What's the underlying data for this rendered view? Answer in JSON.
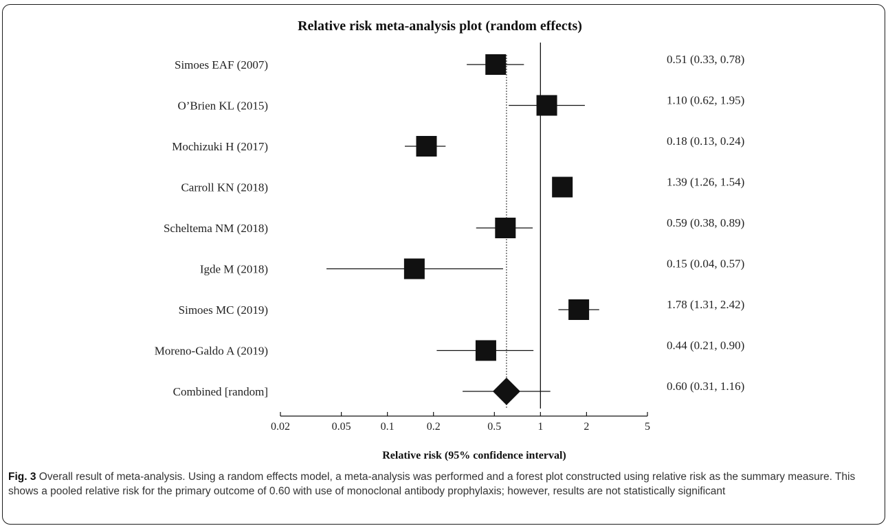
{
  "figure": {
    "number": "Fig. 3",
    "caption": "Overall result of meta-analysis. Using a random effects model, a meta-analysis was performed and a forest plot constructed using relative risk as the summary measure. This shows a pooled relative risk for the primary outcome of 0.60 with use of monoclonal antibody prophylaxis; however, results are not statistically significant"
  },
  "chart_data": {
    "type": "forest",
    "title": "Relative risk meta-analysis plot (random effects)",
    "xlabel": "Relative risk (95% confidence interval)",
    "x_scale": "log",
    "xlim": [
      0.02,
      5
    ],
    "x_ticks": [
      0.02,
      0.05,
      0.1,
      0.2,
      0.5,
      1,
      2,
      5
    ],
    "x_tick_labels": [
      "0.02",
      "0.05",
      "0.1",
      "0.2",
      "0.5",
      "1",
      "2",
      "5"
    ],
    "reference_line": 1,
    "pooled_line": 0.6,
    "studies": [
      {
        "name": "Simoes EAF (2007)",
        "rr": 0.51,
        "lo": 0.33,
        "hi": 0.78,
        "label": "0.51 (0.33, 0.78)"
      },
      {
        "name": "O’Brien KL (2015)",
        "rr": 1.1,
        "lo": 0.62,
        "hi": 1.95,
        "label": "1.10 (0.62, 1.95)"
      },
      {
        "name": "Mochizuki H (2017)",
        "rr": 0.18,
        "lo": 0.13,
        "hi": 0.24,
        "label": "0.18 (0.13, 0.24)"
      },
      {
        "name": "Carroll KN (2018)",
        "rr": 1.39,
        "lo": 1.26,
        "hi": 1.54,
        "label": "1.39 (1.26, 1.54)"
      },
      {
        "name": "Scheltema NM  (2018)",
        "rr": 0.59,
        "lo": 0.38,
        "hi": 0.89,
        "label": "0.59 (0.38, 0.89)"
      },
      {
        "name": "Igde M (2018)",
        "rr": 0.15,
        "lo": 0.04,
        "hi": 0.57,
        "label": "0.15 (0.04, 0.57)"
      },
      {
        "name": "Simoes MC (2019)",
        "rr": 1.78,
        "lo": 1.31,
        "hi": 2.42,
        "label": "1.78 (1.31, 2.42)"
      },
      {
        "name": "Moreno-Galdo A (2019)",
        "rr": 0.44,
        "lo": 0.21,
        "hi": 0.9,
        "label": "0.44 (0.21, 0.90)"
      }
    ],
    "combined": {
      "name": "Combined [random]",
      "rr": 0.6,
      "lo": 0.31,
      "hi": 1.16,
      "label": "0.60 (0.31, 1.16)"
    }
  }
}
